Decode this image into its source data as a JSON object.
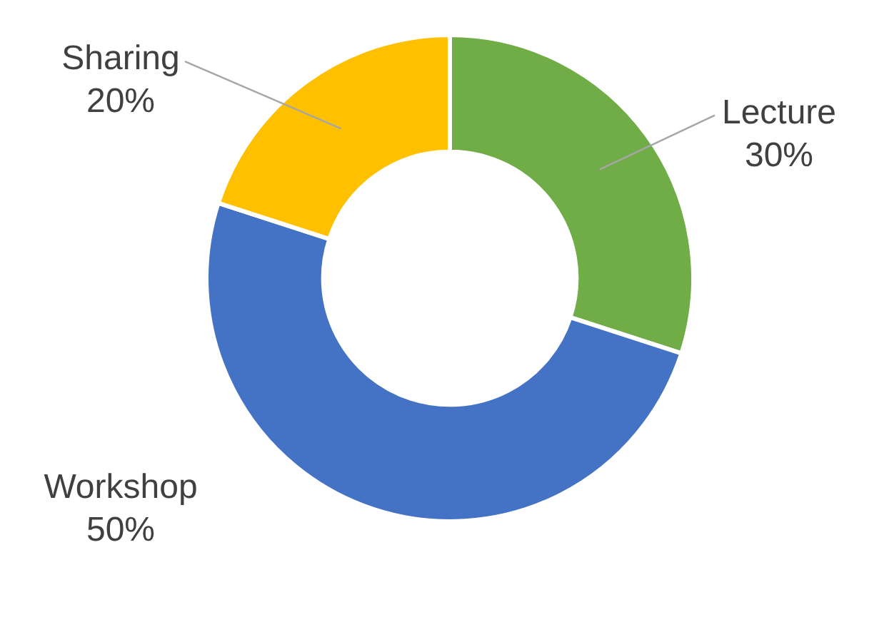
{
  "chart_data": {
    "type": "donut",
    "categories": [
      "Lecture",
      "Workshop",
      "Sharing"
    ],
    "values": [
      30,
      50,
      20
    ],
    "colors": [
      "#70ad47",
      "#4472c4",
      "#ffc000"
    ],
    "value_labels": [
      "30%",
      "50%",
      "20%"
    ],
    "legend": false
  }
}
